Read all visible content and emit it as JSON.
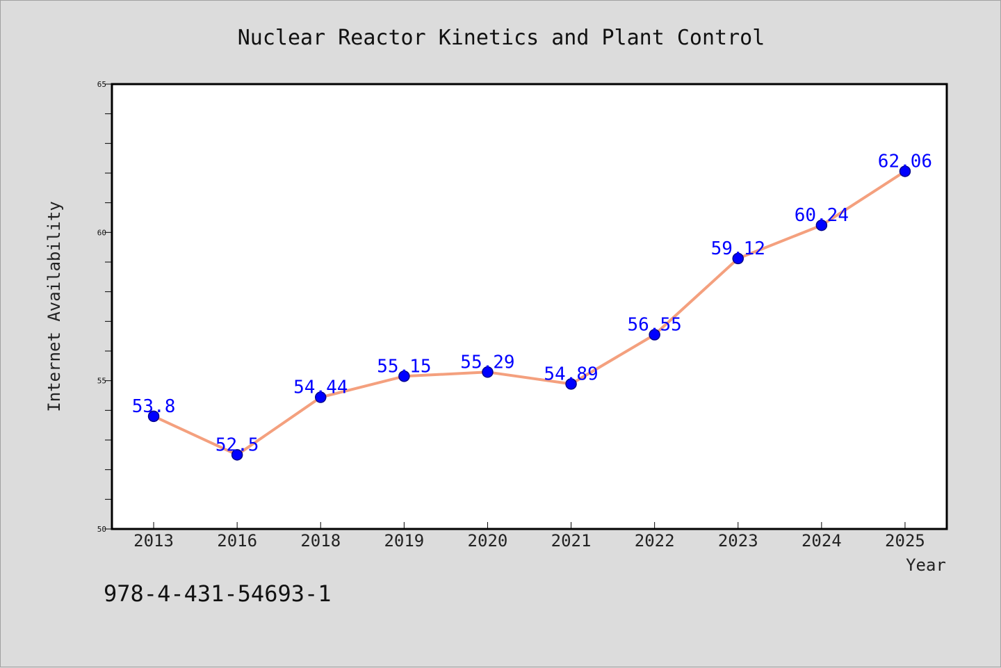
{
  "chart_data": {
    "type": "line",
    "title": "Nuclear Reactor Kinetics and Plant Control",
    "xlabel": "Year",
    "ylabel": "Internet Availability",
    "categories": [
      "2013",
      "2016",
      "2018",
      "2019",
      "2020",
      "2021",
      "2022",
      "2023",
      "2024",
      "2025"
    ],
    "series": [
      {
        "values": [
          53.8,
          52.5,
          54.44,
          55.15,
          55.29,
          54.89,
          56.55,
          59.12,
          60.24,
          62.06
        ],
        "labels": [
          "53.8",
          "52.5",
          "54.44",
          "55.15",
          "55.29",
          "54.89",
          "56.55",
          "59.12",
          "60.24",
          "62.06"
        ],
        "line_color": "#f4a07e",
        "marker_color": "#0000ff"
      }
    ],
    "ylim": [
      50,
      65
    ],
    "yticks": [
      "50",
      "55",
      "60",
      "65"
    ],
    "grid": false
  },
  "footer": {
    "code": "978-4-431-54693-1"
  }
}
